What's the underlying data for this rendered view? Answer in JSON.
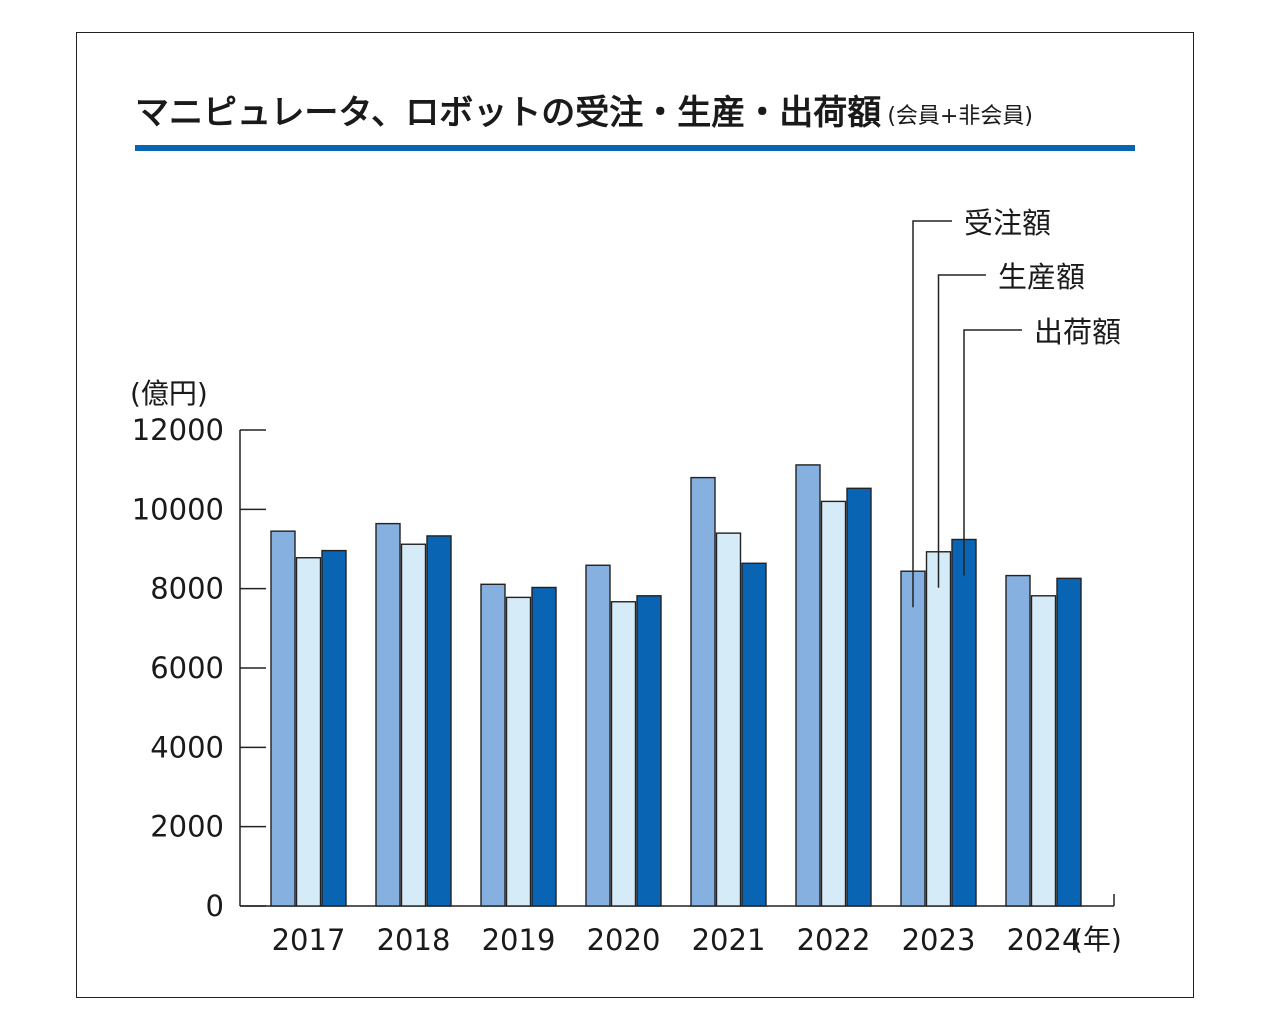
{
  "chart_data": {
    "type": "bar",
    "title": "マニピュレータ、ロボットの受注・生産・出荷額",
    "subtitle": "(会員+非会員)",
    "ylabel": "(億円)",
    "xlabel": "(年)",
    "ylim": [
      0,
      12000
    ],
    "yticks": [
      0,
      2000,
      4000,
      6000,
      8000,
      10000,
      12000
    ],
    "categories": [
      "2017",
      "2018",
      "2019",
      "2020",
      "2021",
      "2022",
      "2023",
      "2024"
    ],
    "series": [
      {
        "name": "受注額",
        "color": "#85b0e0",
        "values": [
          9450,
          9640,
          8110,
          8590,
          10800,
          11120,
          8440,
          8330
        ]
      },
      {
        "name": "生産額",
        "color": "#d6ebf8",
        "values": [
          8780,
          9120,
          7780,
          7670,
          9400,
          10200,
          8930,
          7820
        ]
      },
      {
        "name": "出荷額",
        "color": "#0a64b4",
        "values": [
          8960,
          9330,
          8030,
          7820,
          8640,
          10530,
          9240,
          8260
        ]
      }
    ],
    "legend": "top-right, leader lines to 2023 bars",
    "grid": false
  }
}
